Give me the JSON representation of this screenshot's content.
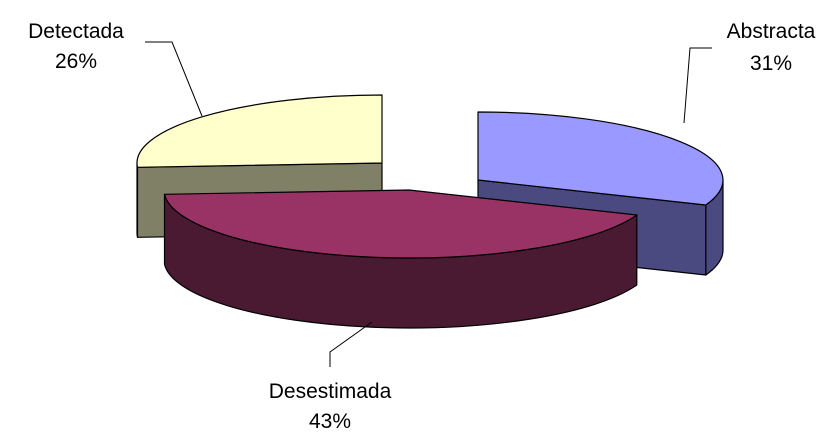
{
  "chart_data": {
    "type": "pie",
    "style": "3d-exploded",
    "slices": [
      {
        "label": "Abstracta",
        "value": 31,
        "value_label": "31%",
        "top_color": "#9999ff",
        "side_color": "#4a4a80"
      },
      {
        "label": "Desestimada",
        "value": 43,
        "value_label": "43%",
        "top_color": "#993366",
        "side_color": "#4a1a33"
      },
      {
        "label": "Detectada",
        "value": 26,
        "value_label": "26%",
        "top_color": "#ffffcc",
        "side_color": "#808066"
      }
    ],
    "legend": false
  }
}
